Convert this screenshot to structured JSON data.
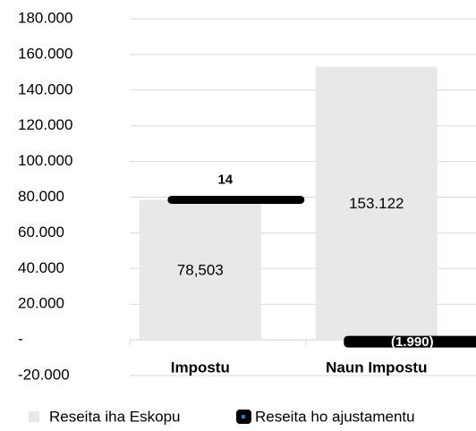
{
  "chart_data": {
    "type": "bar",
    "stacked": true,
    "categories": [
      "Impostu",
      "Naun Impostu"
    ],
    "series": [
      {
        "name": "Reseita iha Eskopu",
        "color": "#e8e8e8",
        "values": [
          78503,
          153122
        ],
        "value_labels": [
          "78,503",
          "153.122"
        ]
      },
      {
        "name": "Reseita ho ajustamentu",
        "color": "#000000",
        "values": [
          14,
          -1990
        ],
        "value_labels": [
          "14",
          "(1.990)"
        ]
      }
    ],
    "ylim": [
      -20000,
      180000
    ],
    "yticks": [
      {
        "value": -20000,
        "label": "-20.000"
      },
      {
        "value": 0,
        "label": "-"
      },
      {
        "value": 20000,
        "label": "20.000"
      },
      {
        "value": 40000,
        "label": "40.000"
      },
      {
        "value": 60000,
        "label": "60.000"
      },
      {
        "value": 80000,
        "label": "80.000"
      },
      {
        "value": 100000,
        "label": "100.000"
      },
      {
        "value": 120000,
        "label": "120.000"
      },
      {
        "value": 140000,
        "label": "140.000"
      },
      {
        "value": 160000,
        "label": "160.000"
      },
      {
        "value": 180000,
        "label": "180.000"
      }
    ],
    "grid": true
  }
}
